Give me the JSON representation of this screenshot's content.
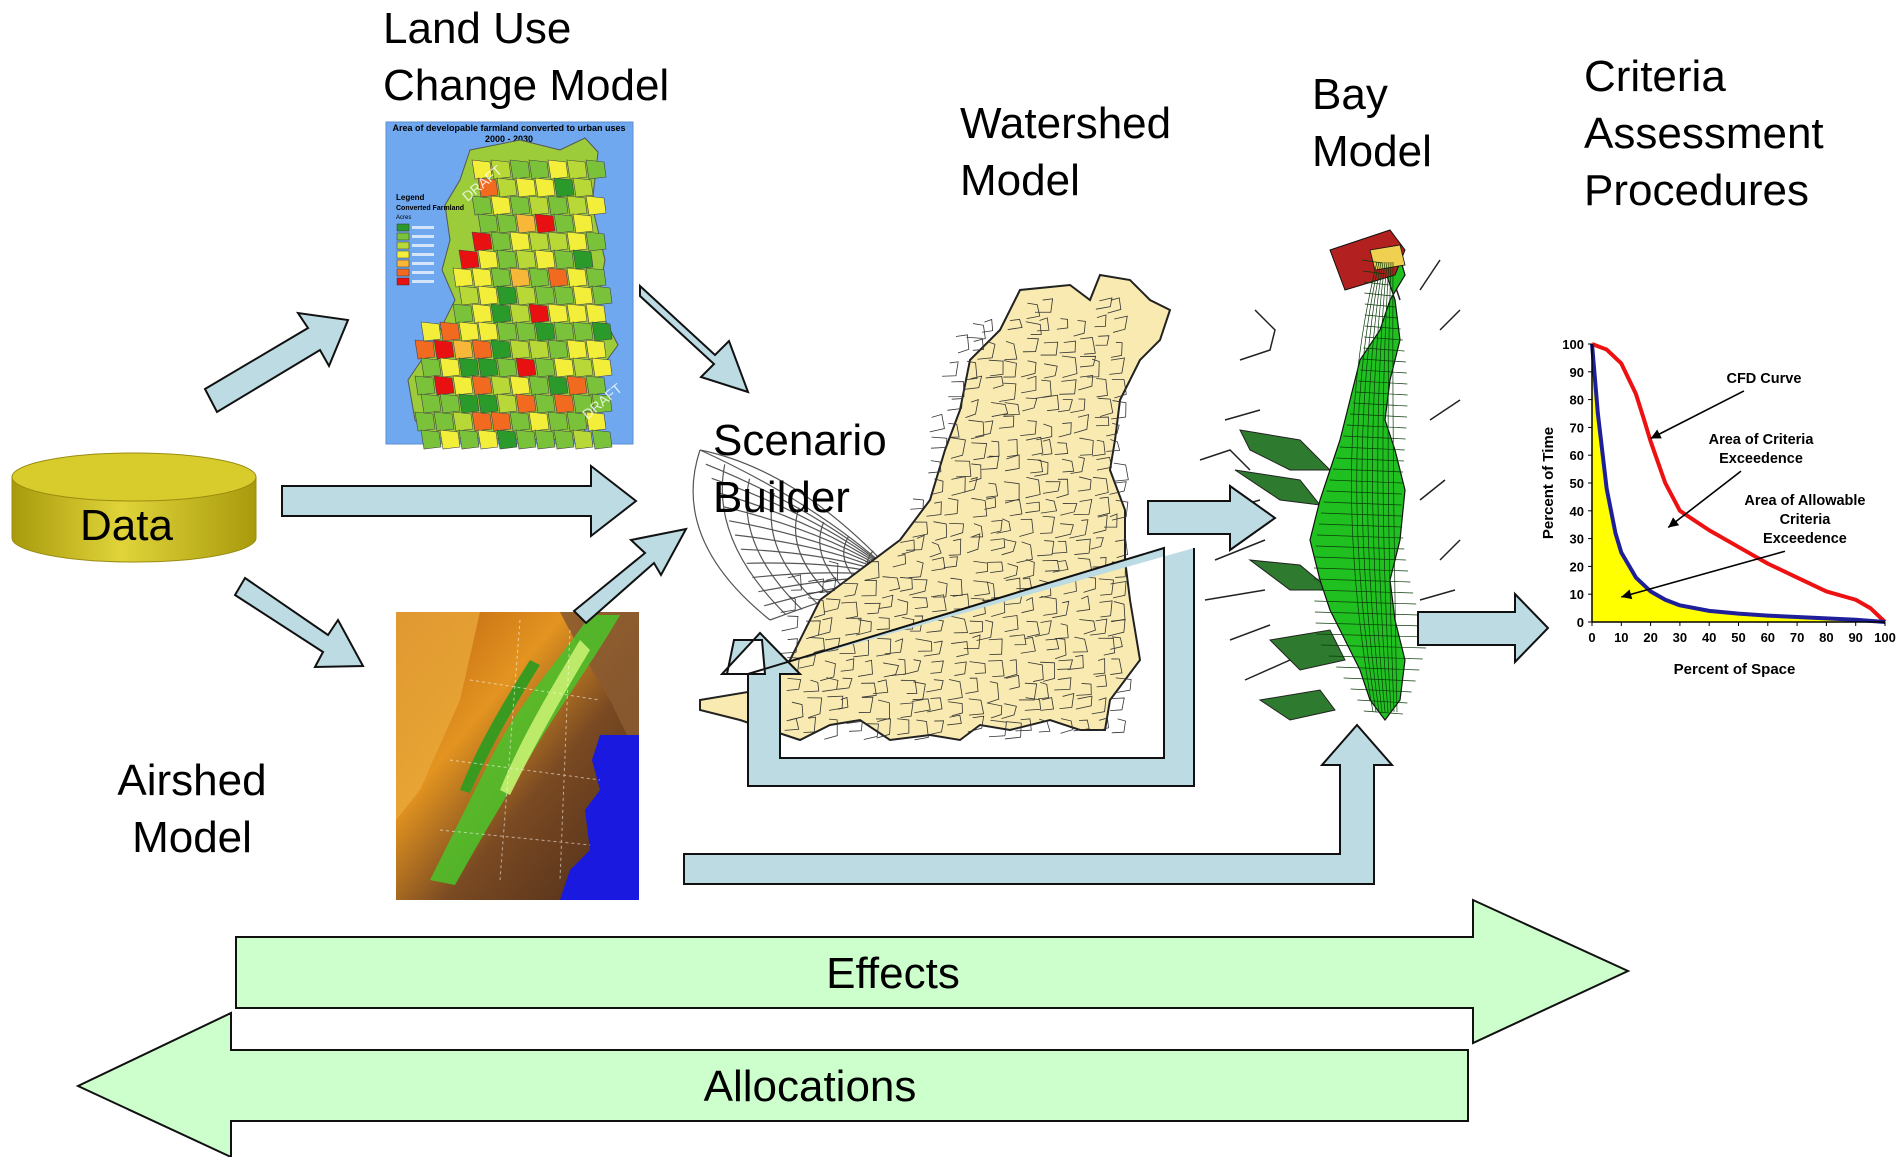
{
  "labels": {
    "land_use": [
      "Land Use",
      "Change Model"
    ],
    "watershed": [
      "Watershed",
      "Model"
    ],
    "bay": [
      "Bay",
      "Model"
    ],
    "criteria": [
      "Criteria",
      "Assessment",
      "Procedures"
    ],
    "scenario": [
      "Scenario",
      "Builder"
    ],
    "airshed": [
      "Airshed",
      "Model"
    ],
    "data": "Data",
    "effects": "Effects",
    "allocations": "Allocations"
  },
  "land_use_map": {
    "title": [
      "Area of developable farmland converted to urban uses",
      "2000 - 2030"
    ],
    "watermark": "DRAFT",
    "legend_title": [
      "Legend",
      "Converted Farmland",
      "Acres"
    ],
    "legend_colors": [
      "#2a9b2a",
      "#7ac23a",
      "#b8d838",
      "#f2ee3a",
      "#f7b83a",
      "#f26a20",
      "#e81010"
    ],
    "background": "#6fa8ef"
  },
  "cfd_chart": {
    "chart_data": {
      "type": "line",
      "xlabel": "Percent of Space",
      "ylabel": "Percent of Time",
      "xlim": [
        0,
        100
      ],
      "ylim": [
        0,
        100
      ],
      "x_ticks": [
        "0",
        "10",
        "20",
        "30",
        "40",
        "50",
        "60",
        "70",
        "80",
        "90",
        "100"
      ],
      "y_ticks": [
        "0",
        "10",
        "20",
        "30",
        "40",
        "50",
        "60",
        "70",
        "80",
        "90",
        "100"
      ],
      "series": [
        {
          "color": "#ee1111",
          "x": [
            0,
            5,
            10,
            15,
            18,
            20,
            25,
            30,
            40,
            50,
            60,
            70,
            80,
            90,
            95,
            100
          ],
          "y": [
            100,
            98,
            93,
            82,
            72,
            65,
            50,
            40,
            33,
            27,
            21,
            16,
            11,
            8,
            5,
            0
          ]
        },
        {
          "color": "#1f1f9c",
          "x": [
            0,
            2,
            5,
            8,
            10,
            15,
            20,
            25,
            30,
            40,
            50,
            60,
            70,
            80,
            90,
            100
          ],
          "y": [
            100,
            75,
            48,
            32,
            25,
            16,
            11,
            8,
            6,
            4,
            3,
            2.3,
            1.8,
            1.3,
            0.8,
            0
          ]
        }
      ],
      "fill_color": "#ffff00",
      "annotations": [
        {
          "text": [
            "CFD Curve"
          ],
          "x": 58,
          "y": 86,
          "arrow_to": [
            20,
            66
          ]
        },
        {
          "text": [
            "Area of Criteria",
            "Exceedence"
          ],
          "x": 57,
          "y": 64,
          "arrow_to": [
            26,
            34
          ]
        },
        {
          "text": [
            "Area of Allowable",
            "Criteria",
            "Exceedence"
          ],
          "x": 72,
          "y": 42,
          "arrow_to": [
            10,
            9
          ]
        }
      ]
    }
  },
  "colors": {
    "arrow_fill": "#bcdbe3",
    "big_arrow_fill": "#ccffcc",
    "cylinder": "#cfc31a",
    "watershed_fill": "#f8eab0",
    "bay_fill": "#20c020"
  }
}
